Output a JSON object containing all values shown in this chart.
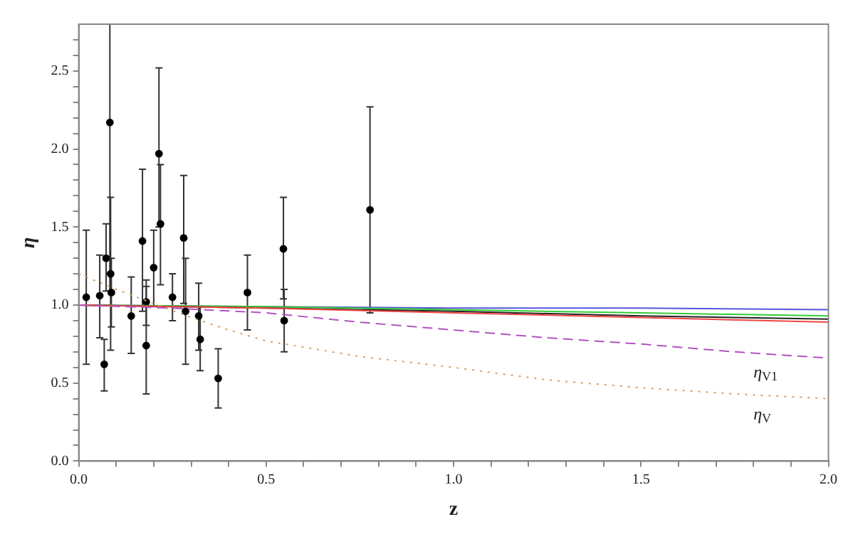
{
  "chart_data": {
    "type": "scatter",
    "xlabel": "z",
    "ylabel": "η",
    "xlim": [
      0,
      2
    ],
    "ylim": [
      0,
      2.8
    ],
    "xticks": [
      {
        "value": 0,
        "label": "0.0"
      },
      {
        "value": 0.1,
        "label": null
      },
      {
        "value": 0.2,
        "label": null
      },
      {
        "value": 0.3,
        "label": null
      },
      {
        "value": 0.4,
        "label": null
      },
      {
        "value": 0.5,
        "label": "0.5"
      },
      {
        "value": 0.6,
        "label": null
      },
      {
        "value": 0.7,
        "label": null
      },
      {
        "value": 0.8,
        "label": null
      },
      {
        "value": 0.9,
        "label": null
      },
      {
        "value": 1,
        "label": "1.0"
      },
      {
        "value": 1.1,
        "label": null
      },
      {
        "value": 1.2,
        "label": null
      },
      {
        "value": 1.3,
        "label": null
      },
      {
        "value": 1.4,
        "label": null
      },
      {
        "value": 1.5,
        "label": "1.5"
      },
      {
        "value": 1.6,
        "label": null
      },
      {
        "value": 1.7,
        "label": null
      },
      {
        "value": 1.8,
        "label": null
      },
      {
        "value": 1.9,
        "label": null
      },
      {
        "value": 2,
        "label": "2.0"
      }
    ],
    "yticks": [
      {
        "value": 0,
        "label": "0.0"
      },
      {
        "value": 0.1,
        "label": null
      },
      {
        "value": 0.2,
        "label": null
      },
      {
        "value": 0.3,
        "label": null
      },
      {
        "value": 0.4,
        "label": null
      },
      {
        "value": 0.5,
        "label": "0.5"
      },
      {
        "value": 0.6,
        "label": null
      },
      {
        "value": 0.7,
        "label": null
      },
      {
        "value": 0.8,
        "label": null
      },
      {
        "value": 0.9,
        "label": null
      },
      {
        "value": 1,
        "label": "1.0"
      },
      {
        "value": 1.1,
        "label": null
      },
      {
        "value": 1.2,
        "label": null
      },
      {
        "value": 1.3,
        "label": null
      },
      {
        "value": 1.4,
        "label": null
      },
      {
        "value": 1.5,
        "label": "1.5"
      },
      {
        "value": 1.6,
        "label": null
      },
      {
        "value": 1.7,
        "label": null
      },
      {
        "value": 1.8,
        "label": null
      },
      {
        "value": 1.9,
        "label": null
      },
      {
        "value": 2,
        "label": "2.0"
      },
      {
        "value": 2.1,
        "label": null
      },
      {
        "value": 2.2,
        "label": null
      },
      {
        "value": 2.3,
        "label": null
      },
      {
        "value": 2.4,
        "label": null
      },
      {
        "value": 2.5,
        "label": "2.5"
      },
      {
        "value": 2.6,
        "label": null
      },
      {
        "value": 2.7,
        "label": null
      }
    ],
    "grid": false,
    "legend": false,
    "series": [
      {
        "type": "line",
        "name": "η$_{V}$",
        "color": "#d9a06a",
        "line_style": "dotted",
        "marker": "none",
        "x": [
          0,
          0.1,
          0.2,
          0.3,
          0.4,
          0.5,
          0.75,
          1,
          1.25,
          1.5,
          1.75,
          2
        ],
        "values": [
          1.2,
          1.1,
          1.01,
          0.92,
          0.84,
          0.77,
          0.67,
          0.6,
          0.52,
          0.47,
          0.43,
          0.4
        ]
      },
      {
        "type": "line",
        "name": "η$_{V1}$",
        "color": "#b552c4",
        "line_style": "dashed",
        "marker": "none",
        "x": [
          0,
          0.25,
          0.5,
          0.75,
          1,
          1.25,
          1.5,
          1.75,
          2
        ],
        "values": [
          1.0,
          0.98,
          0.95,
          0.89,
          0.84,
          0.79,
          0.75,
          0.7,
          0.66
        ]
      },
      {
        "type": "line",
        "color": "#ee4444",
        "line_style": "solid",
        "marker": "none",
        "x": [
          0,
          0.5,
          1,
          1.5,
          2
        ],
        "values": [
          1.0,
          0.98,
          0.95,
          0.92,
          0.89
        ]
      },
      {
        "type": "line",
        "color": "#222222",
        "line_style": "solid",
        "marker": "none",
        "x": [
          0,
          0.5,
          1,
          1.5,
          2
        ],
        "values": [
          1.0,
          0.98,
          0.96,
          0.93,
          0.91
        ]
      },
      {
        "type": "line",
        "color": "#33cc33",
        "line_style": "solid",
        "marker": "none",
        "x": [
          0,
          0.5,
          1,
          1.5,
          2
        ],
        "values": [
          1.0,
          0.99,
          0.97,
          0.95,
          0.93
        ]
      },
      {
        "type": "line",
        "color": "#5555dd",
        "line_style": "solid",
        "marker": "none",
        "x": [
          0,
          0.5,
          1,
          1.5,
          2
        ],
        "values": [
          1.0,
          0.99,
          0.98,
          0.98,
          0.97
        ]
      },
      {
        "type": "scatter",
        "color": "#000000",
        "marker": "circle",
        "x": [
          0.02,
          0.056,
          0.068,
          0.073,
          0.083,
          0.085,
          0.087,
          0.14,
          0.17,
          0.18,
          0.18,
          0.2,
          0.214,
          0.218,
          0.25,
          0.28,
          0.285,
          0.32,
          0.324,
          0.372,
          0.45,
          0.546,
          0.548,
          0.777
        ],
        "values": [
          1.05,
          1.06,
          0.62,
          1.3,
          2.17,
          1.2,
          1.08,
          0.93,
          1.41,
          0.74,
          1.02,
          1.24,
          1.97,
          1.52,
          1.05,
          1.43,
          0.96,
          0.93,
          0.78,
          0.53,
          1.08,
          1.36,
          0.9,
          1.61
        ],
        "errors": [
          [
            0.62,
            1.48
          ],
          [
            0.79,
            1.32
          ],
          [
            0.45,
            0.78
          ],
          [
            1.09,
            1.52
          ],
          [
            1.09,
            2.8
          ],
          [
            0.71,
            1.69
          ],
          [
            0.86,
            1.3
          ],
          [
            0.69,
            1.18
          ],
          [
            0.96,
            1.87
          ],
          [
            0.43,
            1.12
          ],
          [
            0.87,
            1.16
          ],
          [
            0.99,
            1.48
          ],
          [
            1.5,
            2.52
          ],
          [
            1.13,
            1.9
          ],
          [
            0.9,
            1.2
          ],
          [
            1.01,
            1.83
          ],
          [
            0.62,
            1.3
          ],
          [
            0.71,
            1.14
          ],
          [
            0.58,
            0.99
          ],
          [
            0.34,
            0.72
          ],
          [
            0.84,
            1.32
          ],
          [
            1.04,
            1.69
          ],
          [
            0.7,
            1.1
          ],
          [
            0.95,
            2.27
          ]
        ]
      }
    ]
  }
}
